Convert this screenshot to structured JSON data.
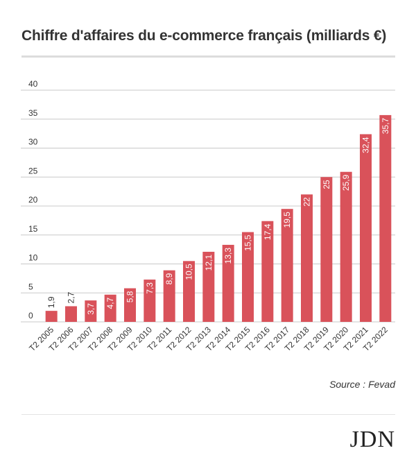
{
  "title": "Chiffre d'affaires du e-commerce français (milliards €)",
  "source": "Source : Fevad",
  "logo": "JDN",
  "colors": {
    "bar": "#d9525a",
    "grid": "#c8c8c8",
    "text": "#333333"
  },
  "chart_data": {
    "type": "bar",
    "title": "Chiffre d'affaires du e-commerce français (milliards €)",
    "xlabel": "",
    "ylabel": "",
    "ylim": [
      0,
      40
    ],
    "yticks": [
      0,
      5,
      10,
      15,
      20,
      25,
      30,
      35,
      40
    ],
    "grid": true,
    "categories": [
      "T2 2005",
      "T2 2006",
      "T2 2007",
      "T2 2008",
      "T2 2009",
      "T2 2010",
      "T2 2011",
      "T2 2012",
      "T2 2013",
      "T2 2014",
      "T2 2015",
      "T2 2016",
      "T2 2017",
      "T2 2018",
      "T2 2019",
      "T2 2020",
      "T2 2021",
      "T2 2022"
    ],
    "values": [
      1.9,
      2.7,
      3.7,
      4.7,
      5.8,
      7.3,
      8.9,
      10.5,
      12.1,
      13.3,
      15.5,
      17.4,
      19.5,
      22,
      25,
      25.9,
      32.4,
      35.7
    ],
    "value_labels": [
      "1,9",
      "2,7",
      "3,7",
      "4,7",
      "5,8",
      "7,3",
      "8,9",
      "10,5",
      "12,1",
      "13,3",
      "15,5",
      "17,4",
      "19,5",
      "22",
      "25",
      "25,9",
      "32,4",
      "35,7"
    ]
  }
}
